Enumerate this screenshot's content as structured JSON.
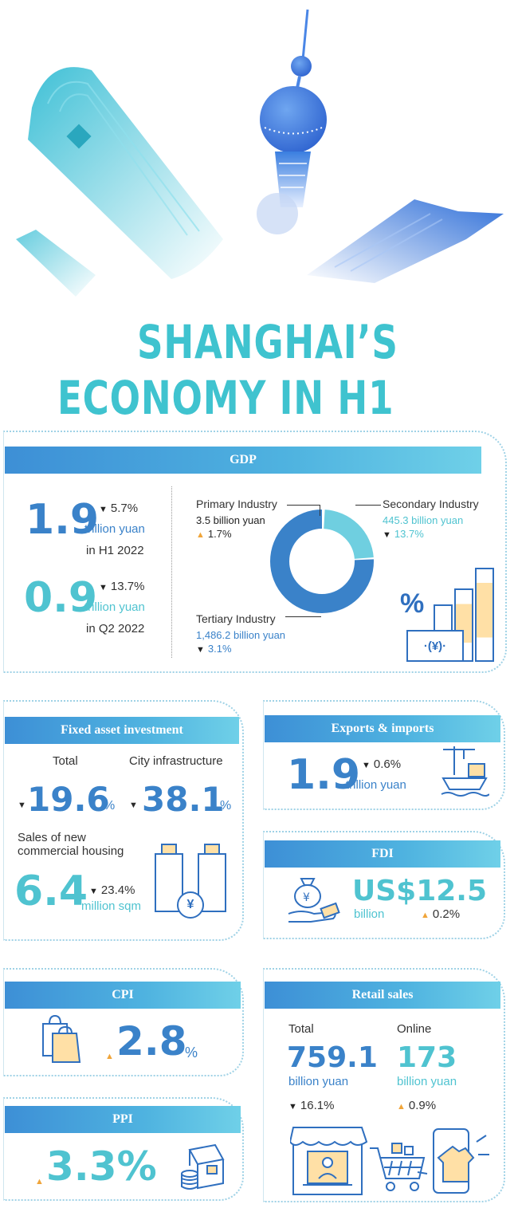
{
  "title": {
    "line1": "SHANGHAI’S",
    "line2": "ECONOMY IN H1"
  },
  "gdp": {
    "header": "GDP",
    "h1_value": "1.9",
    "h1_change": "5.7%",
    "h1_unit": "trillion yuan",
    "h1_period": "in H1 2022",
    "q2_value": "0.9",
    "q2_change": "13.7%",
    "q2_unit": "trillion yuan",
    "q2_period": "in Q2 2022",
    "primary": {
      "label": "Primary Industry",
      "value": "3.5 billion yuan",
      "change": "1.7%"
    },
    "secondary": {
      "label": "Secondary Industry",
      "value": "445.3 billion yuan",
      "change": "13.7%"
    },
    "tertiary": {
      "label": "Tertiary Industry",
      "value": "1,486.2 billion yuan",
      "change": "3.1%"
    },
    "icon_percent": "%",
    "icon_yuan": "·(¥)·"
  },
  "fai": {
    "header": "Fixed asset investment",
    "total_label": "Total",
    "total_value": "19.6",
    "total_unit": "%",
    "infra_label": "City infrastructure",
    "infra_value": "38.1",
    "infra_unit": "%",
    "housing_label_1": "Sales of new",
    "housing_label_2": "commercial housing",
    "housing_value": "6.4",
    "housing_change": "23.4%",
    "housing_unit": "million sqm"
  },
  "trade": {
    "header": "Exports & imports",
    "value": "1.9",
    "change": "0.6%",
    "unit": "trillion yuan"
  },
  "fdi": {
    "header": "FDI",
    "value": "US$12.5",
    "unit": "billion",
    "change": "0.2%"
  },
  "cpi": {
    "header": "CPI",
    "value": "2.8",
    "unit": "%"
  },
  "ppi": {
    "header": "PPI",
    "value": "3.3%"
  },
  "retail": {
    "header": "Retail sales",
    "total_label": "Total",
    "total_value": "759.1",
    "total_unit": "billion yuan",
    "total_change": "16.1%",
    "online_label": "Online",
    "online_value": "173",
    "online_unit": "billion yuan",
    "online_change": "0.9%"
  },
  "colors": {
    "blue": "#3a82c9",
    "teal": "#4fc3d0",
    "accent_orange": "#f0a53a",
    "title": "#3fc3cf"
  }
}
